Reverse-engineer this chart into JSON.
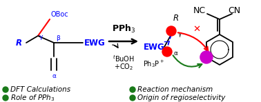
{
  "bg_color": "#ffffff",
  "blue": "#0000FF",
  "red": "#FF0000",
  "green": "#1a7a1a",
  "magenta": "#CC00CC",
  "black": "#000000",
  "figsize": [
    3.78,
    1.48
  ],
  "dpi": 100,
  "legend": [
    {
      "text": "DFT Calculations",
      "col": 0
    },
    {
      "text": "Role of PPh$_3$",
      "col": 0
    },
    {
      "text": "Reaction mechanism",
      "col": 1
    },
    {
      "text": "Origin of regioselectivity",
      "col": 1
    }
  ]
}
